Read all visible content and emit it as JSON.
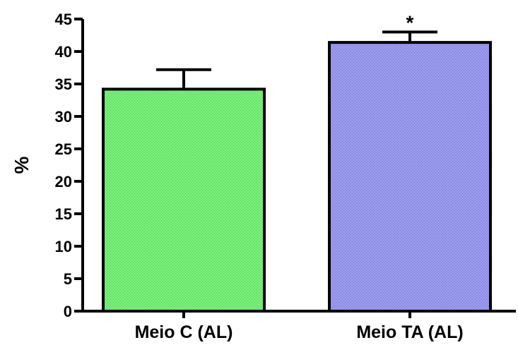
{
  "chart_data": {
    "type": "bar",
    "title": "",
    "xlabel": "",
    "ylabel": "%",
    "ylim": [
      0,
      45
    ],
    "yticks": [
      0,
      5,
      10,
      15,
      20,
      25,
      30,
      35,
      40,
      45
    ],
    "grid": false,
    "categories": [
      "Meio C (AL)",
      "Meio TA (AL)"
    ],
    "values": [
      34.2,
      41.4
    ],
    "error_upper": [
      37.2,
      43.0
    ],
    "bar_colors": [
      "#77ee77",
      "#9999ee"
    ],
    "annotations": [
      "",
      "*"
    ]
  }
}
